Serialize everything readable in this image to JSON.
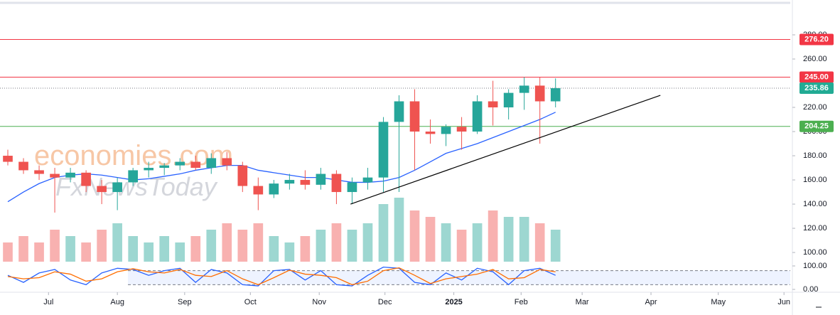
{
  "chart_data": {
    "type": "candlestick",
    "up_color": "#26a69a",
    "down_color": "#ef5350",
    "open": [
      180,
      175,
      168,
      165,
      162,
      166,
      155,
      150,
      158,
      168,
      170,
      172,
      175,
      170,
      178,
      172,
      155,
      148,
      157,
      160,
      156,
      165,
      150,
      158,
      162,
      208,
      225,
      200,
      198,
      204,
      200,
      225,
      220,
      232,
      238,
      225
    ],
    "high": [
      185,
      178,
      172,
      170,
      170,
      168,
      160,
      162,
      170,
      175,
      174,
      178,
      180,
      182,
      183,
      175,
      162,
      160,
      165,
      168,
      170,
      168,
      162,
      170,
      212,
      230,
      235,
      210,
      206,
      212,
      230,
      242,
      235,
      245,
      245,
      244
    ],
    "low": [
      172,
      165,
      160,
      133,
      158,
      150,
      140,
      135,
      155,
      162,
      164,
      168,
      168,
      165,
      168,
      150,
      135,
      145,
      152,
      152,
      152,
      140,
      140,
      152,
      150,
      150,
      168,
      190,
      188,
      185,
      198,
      205,
      210,
      218,
      190,
      220
    ],
    "close": [
      175,
      168,
      165,
      162,
      166,
      155,
      150,
      158,
      168,
      170,
      172,
      175,
      170,
      178,
      172,
      155,
      148,
      157,
      160,
      156,
      165,
      150,
      158,
      162,
      208,
      225,
      200,
      198,
      204,
      200,
      225,
      220,
      232,
      238,
      225,
      235.86
    ],
    "volume": [
      3,
      4,
      3,
      5,
      4,
      3,
      5,
      6,
      4,
      3,
      4,
      3,
      4,
      5,
      6,
      5,
      6,
      4,
      3,
      4,
      5,
      6,
      5,
      6,
      9,
      10,
      8,
      7,
      6,
      5,
      6,
      8,
      7,
      7,
      6,
      5
    ],
    "ma": {
      "color": "#2962ff",
      "values": [
        142,
        150,
        157,
        162,
        164,
        165,
        164,
        162,
        160,
        161,
        163,
        165,
        168,
        170,
        172,
        172,
        168,
        166,
        164,
        162,
        162,
        160,
        158,
        158,
        159,
        162,
        168,
        175,
        182,
        186,
        190,
        195,
        200,
        205,
        210,
        216
      ]
    },
    "xlim": [
      0,
      50.5
    ],
    "xticks": [
      {
        "value": 3.1,
        "label": "Jul"
      },
      {
        "value": 7.5,
        "label": "Aug"
      },
      {
        "value": 11.8,
        "label": "Sep"
      },
      {
        "value": 16.0,
        "label": "Oct"
      },
      {
        "value": 20.4,
        "label": "Nov"
      },
      {
        "value": 24.6,
        "label": "Dec"
      },
      {
        "value": 29.0,
        "label": "2025"
      },
      {
        "value": 33.3,
        "label": "Feb"
      },
      {
        "value": 37.2,
        "label": "Mar"
      },
      {
        "value": 41.6,
        "label": "Apr"
      },
      {
        "value": 45.9,
        "label": "May"
      },
      {
        "value": 50.1,
        "label": "Jun"
      }
    ],
    "ylim": [
      92.4,
      304.1
    ],
    "yticks": [
      {
        "value": 100,
        "label": "100.00"
      },
      {
        "value": 120,
        "label": "120.00"
      },
      {
        "value": 140,
        "label": "140.00"
      },
      {
        "value": 160,
        "label": "160.00"
      },
      {
        "value": 180,
        "label": "180.00"
      },
      {
        "value": 200,
        "label": "200.00"
      },
      {
        "value": 220,
        "label": "220.00"
      },
      {
        "value": 260,
        "label": "260.00"
      },
      {
        "value": 280,
        "label": "280.00"
      }
    ],
    "levels": [
      {
        "value": 276.2,
        "label": "276.20",
        "color": "#f23645",
        "style": "solid"
      },
      {
        "value": 245,
        "label": "245.00",
        "color": "#f23645",
        "style": "solid"
      },
      {
        "value": 235.86,
        "label": "235.86",
        "color": "#22ab94",
        "style": "dotted"
      },
      {
        "value": 204.25,
        "label": "204.25",
        "color": "#4caf50",
        "style": "solid"
      }
    ],
    "trendline": {
      "x": [
        22.4,
        42.2
      ],
      "y": [
        140,
        230
      ],
      "color": "#000000"
    },
    "stochastic": {
      "k_color": "#2962ff",
      "d_color": "#ff6d00",
      "k": [
        60,
        30,
        70,
        85,
        40,
        20,
        70,
        90,
        85,
        60,
        80,
        90,
        30,
        85,
        70,
        20,
        15,
        80,
        85,
        40,
        80,
        20,
        15,
        60,
        95,
        90,
        30,
        20,
        70,
        40,
        90,
        75,
        20,
        80,
        90,
        60
      ],
      "d": [
        55,
        45,
        50,
        75,
        65,
        35,
        45,
        75,
        88,
        75,
        70,
        85,
        60,
        55,
        80,
        45,
        20,
        50,
        82,
        65,
        60,
        50,
        20,
        35,
        80,
        92,
        60,
        25,
        45,
        55,
        65,
        85,
        45,
        50,
        85,
        75
      ],
      "ylim": [
        0,
        100
      ],
      "bands": [
        20,
        80
      ],
      "yticks": [
        {
          "value": 100,
          "label": "100.00"
        },
        {
          "value": 0,
          "label": "0.00"
        }
      ]
    },
    "watermarks": [
      "economies.com",
      "FxNewsToday"
    ]
  }
}
